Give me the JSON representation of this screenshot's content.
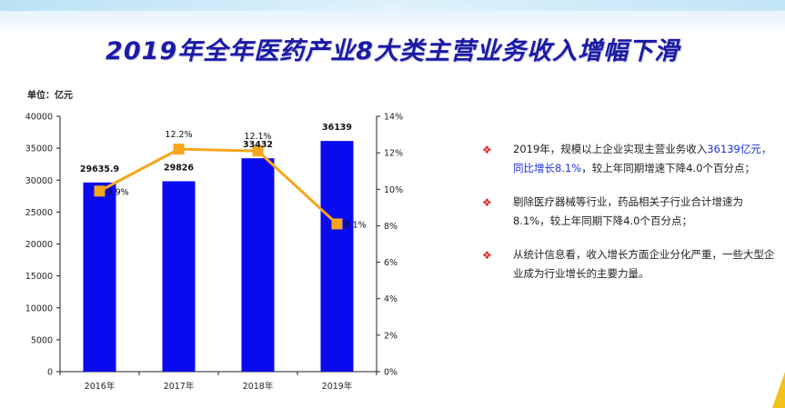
{
  "title": "2019年全年医药产业8大类主营业务收入增幅下滑",
  "unit_label": "单位：亿元",
  "chart_data": {
    "type": "bar+line",
    "categories": [
      "2016年",
      "2017年",
      "2018年",
      "2019年"
    ],
    "bar_series": {
      "values": [
        29635.9,
        29826,
        33432,
        36139
      ],
      "labels": [
        "29635.9",
        "29826",
        "33432",
        "36139"
      ],
      "color": "#0a0aef"
    },
    "line_series": {
      "values": [
        9.9,
        12.2,
        12.1,
        8.1
      ],
      "labels": [
        "9.9%",
        "12.2%",
        "12.1%",
        "8.1%"
      ],
      "color": "#f7a51c"
    },
    "y_left": {
      "min": 0,
      "max": 40000,
      "step": 5000,
      "ticks": [
        "0",
        "5000",
        "10000",
        "15000",
        "20000",
        "25000",
        "30000",
        "35000",
        "40000"
      ]
    },
    "y_right": {
      "min": 0,
      "max": 14,
      "step": 2,
      "ticks": [
        "0%",
        "2%",
        "4%",
        "6%",
        "8%",
        "10%",
        "12%",
        "14%"
      ]
    },
    "grid": false,
    "legend": "none"
  },
  "notes": [
    {
      "parts": [
        "2019年，规模以上企业实现主营业务收入",
        "36139亿元，同比增长8.1%",
        "，较上年同期增速下降4.0个百分点；"
      ]
    },
    {
      "parts": [
        "剔除医疗器械等行业，药品相关子行业合计增速为8.1%，较上年同期下降4.0个百分点；"
      ]
    },
    {
      "parts": [
        "从统计信息看，收入增长方面企业分化严重，一些大型企业成为行业增长的主要力量。"
      ]
    }
  ],
  "bullet_symbol": "❖",
  "colors": {
    "title": "#1a1aa6",
    "highlight": "#1d2fe0",
    "bullet": "#d6282a",
    "corner": "#f3c21a"
  }
}
